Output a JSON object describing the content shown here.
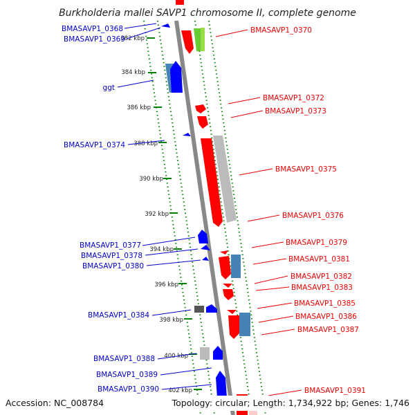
{
  "title": "Burkholderia mallei SAVP1 chromosome II, complete genome",
  "footer": {
    "accession": "Accession: NC_008784",
    "summary": "Topology: circular; Length: 1,734,922 bp; Genes: 1,746"
  },
  "colors": {
    "forward": "#ff0000",
    "reverse": "#0000ff",
    "forward_label": "#ee0000",
    "reverse_label": "#0000cc",
    "tick": "#008000",
    "backbone": "#888888",
    "steelblue": "#4682b4",
    "gray": "#aaaaaa",
    "green": "#66cc33"
  },
  "kbp_ticks": [
    "382 kbp",
    "384 kbp",
    "386 kbp",
    "388 kbp",
    "390 kbp",
    "392 kbp",
    "394 kbp",
    "396 kbp",
    "398 kbp",
    "400 kbp",
    "402 kbp"
  ],
  "left_labels": [
    "BMASAVP1_0368",
    "BMASAVP1_0369",
    "ggt",
    "BMASAVP1_0374",
    "BMASAVP1_0377",
    "BMASAVP1_0378",
    "BMASAVP1_0380",
    "BMASAVP1_0384",
    "BMASAVP1_0388",
    "BMASAVP1_0389",
    "BMASAVP1_0390"
  ],
  "right_labels": [
    "BMASAVP1_0370",
    "BMASAVP1_0372",
    "BMASAVP1_0373",
    "BMASAVP1_0375",
    "BMASAVP1_0376",
    "BMASAVP1_0379",
    "BMASAVP1_0381",
    "BMASAVP1_0382",
    "BMASAVP1_0383",
    "BMASAVP1_0385",
    "BMASAVP1_0386",
    "BMASAVP1_0387",
    "BMASAVP1_0391"
  ]
}
